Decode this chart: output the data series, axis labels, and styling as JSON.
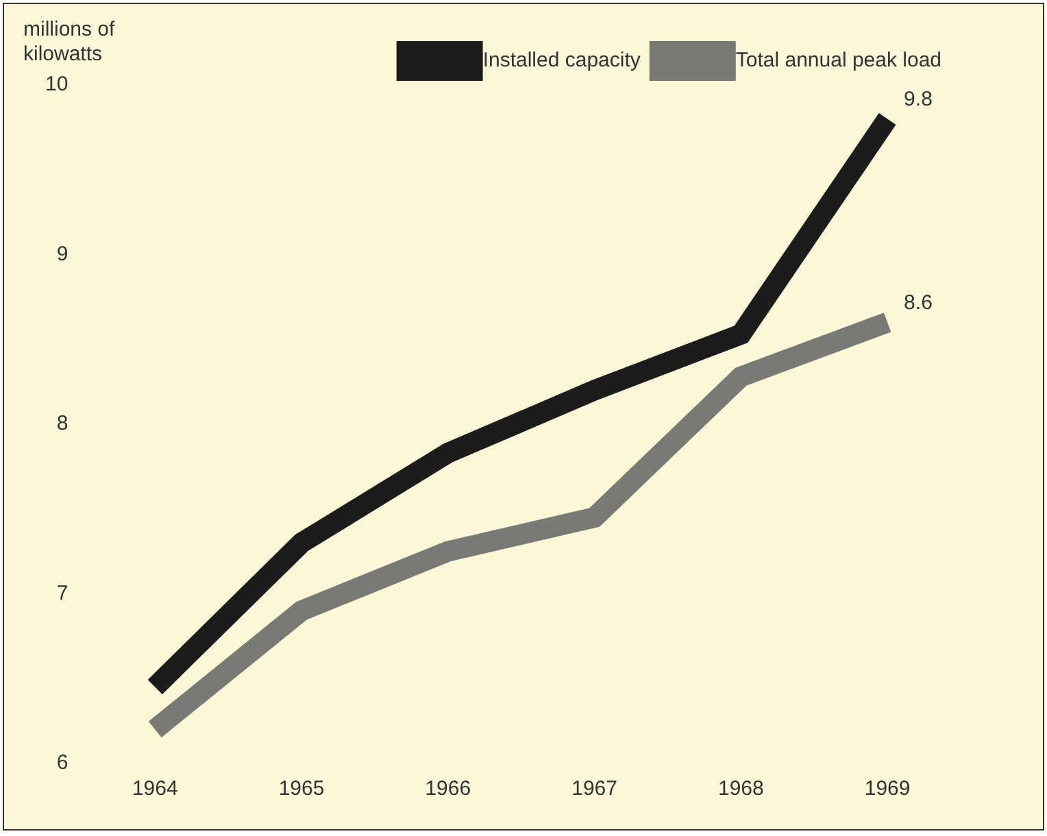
{
  "chart_data": {
    "type": "line",
    "ylabel": "millions of kilowatts",
    "categories": [
      "1964",
      "1965",
      "1966",
      "1967",
      "1968",
      "1969"
    ],
    "series": [
      {
        "name": "Installed capacity",
        "color": "#1c1c1a",
        "values": [
          6.45,
          7.3,
          7.83,
          8.2,
          8.53,
          9.8
        ],
        "value_labels": [
          null,
          null,
          null,
          null,
          null,
          "9.8"
        ]
      },
      {
        "name": "Total annual peak load",
        "color": "#7a7a74",
        "values": [
          6.2,
          6.9,
          7.25,
          7.45,
          8.28,
          8.6
        ],
        "value_labels": [
          null,
          null,
          null,
          null,
          null,
          "8.6"
        ]
      }
    ],
    "ylim": [
      6,
      10
    ],
    "yticks": [
      6,
      7,
      8,
      9,
      10
    ],
    "grid": false,
    "legend": "top right",
    "marker": "none",
    "line_style": "solid"
  }
}
